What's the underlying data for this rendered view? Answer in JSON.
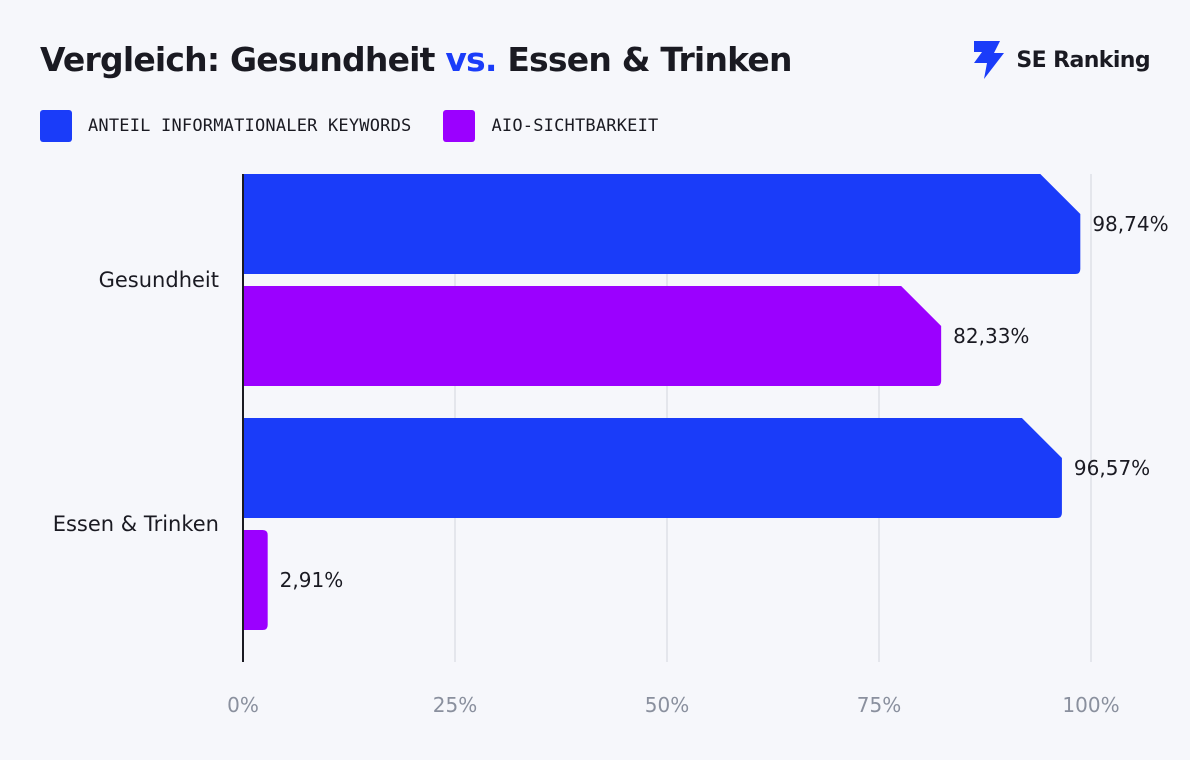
{
  "header": {
    "title_part1": "Vergleich: Gesundheit ",
    "title_vs": "vs.",
    "title_part2": " Essen & Trinken",
    "brand": "SE Ranking",
    "brand_icon": "se-ranking-bolt-logo"
  },
  "chart_data": {
    "type": "bar",
    "orientation": "horizontal",
    "title": "Vergleich: Gesundheit vs. Essen & Trinken",
    "categories": [
      "Gesundheit",
      "Essen & Trinken"
    ],
    "series": [
      {
        "name": "ANTEIL INFORMATIONALER KEYWORDS",
        "color": "#1a3cf9",
        "values": [
          98.74,
          96.57
        ],
        "labels": [
          "98,74%",
          "96,57%"
        ]
      },
      {
        "name": "AIO-SICHTBARKEIT",
        "color": "#9b00ff",
        "values": [
          82.33,
          2.91
        ],
        "labels": [
          "82,33%",
          "2,91%"
        ]
      }
    ],
    "xlim": [
      0,
      100
    ],
    "xticks": [
      0,
      25,
      50,
      75,
      100
    ],
    "xtick_labels": [
      "0%",
      "25%",
      "50%",
      "75%",
      "100%"
    ],
    "grid": "vertical",
    "legend_position": "top-left"
  }
}
